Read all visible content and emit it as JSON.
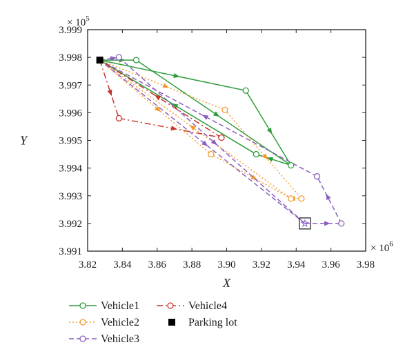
{
  "chart_data": {
    "type": "line",
    "xlabel": "X",
    "ylabel": "Y",
    "x_multiplier": "× 10",
    "x_multiplier_exp": "6",
    "y_multiplier": "× 10",
    "y_multiplier_exp": "5",
    "xlim": [
      3.82,
      3.98
    ],
    "ylim": [
      3.991,
      3.999
    ],
    "xticks": [
      "3.82",
      "3.84",
      "3.86",
      "3.88",
      "3.90",
      "3.92",
      "3.94",
      "3.96",
      "3.98"
    ],
    "yticks": [
      "3.991",
      "3.992",
      "3.993",
      "3.994",
      "3.995",
      "3.996",
      "3.997",
      "3.998",
      "3.999"
    ],
    "grid": false,
    "legend_position": "bottom-left",
    "parking_lot": {
      "name": "Parking lot",
      "x": 3.827,
      "y": 3.9979,
      "color": "#000000"
    },
    "destination": {
      "x": 3.945,
      "y": 3.992
    },
    "series": [
      {
        "name": "Vehicle1",
        "color": "#2e9c3a",
        "dash": "solid",
        "path": [
          [
            3.827,
            3.9979
          ],
          [
            3.848,
            3.9979
          ],
          [
            3.937,
            3.9941
          ],
          [
            3.917,
            3.9945
          ],
          [
            3.827,
            3.9979
          ],
          [
            3.911,
            3.9968
          ],
          [
            3.937,
            3.9941
          ]
        ],
        "markers": [
          [
            3.848,
            3.9979
          ],
          [
            3.911,
            3.9968
          ],
          [
            3.917,
            3.9945
          ],
          [
            3.937,
            3.9941
          ]
        ]
      },
      {
        "name": "Vehicle2",
        "color": "#f39a2c",
        "dash": "dotted",
        "path": [
          [
            3.827,
            3.9979
          ],
          [
            3.899,
            3.9961
          ],
          [
            3.943,
            3.9929
          ],
          [
            3.937,
            3.9929
          ],
          [
            3.827,
            3.9979
          ],
          [
            3.891,
            3.9945
          ],
          [
            3.937,
            3.9929
          ]
        ],
        "markers": [
          [
            3.899,
            3.9961
          ],
          [
            3.891,
            3.9945
          ],
          [
            3.937,
            3.9929
          ],
          [
            3.943,
            3.9929
          ]
        ]
      },
      {
        "name": "Vehicle3",
        "color": "#8a5fbf",
        "dash": "dashed",
        "path": [
          [
            3.827,
            3.9979
          ],
          [
            3.838,
            3.998
          ],
          [
            3.945,
            3.992
          ],
          [
            3.966,
            3.992
          ],
          [
            3.952,
            3.9937
          ],
          [
            3.827,
            3.9979
          ],
          [
            3.945,
            3.992
          ]
        ],
        "markers": [
          [
            3.838,
            3.998
          ],
          [
            3.952,
            3.9937
          ],
          [
            3.966,
            3.992
          ]
        ]
      },
      {
        "name": "Vehicle4",
        "color": "#c9342c",
        "dash": "dashdot",
        "path": [
          [
            3.827,
            3.9979
          ],
          [
            3.838,
            3.9958
          ],
          [
            3.897,
            3.9951
          ],
          [
            3.827,
            3.9979
          ]
        ],
        "markers": [
          [
            3.838,
            3.9958
          ],
          [
            3.897,
            3.9951
          ]
        ]
      }
    ],
    "legend_order": [
      "Vehicle1",
      "Vehicle4",
      "Vehicle2",
      "Parking lot",
      "Vehicle3"
    ]
  }
}
